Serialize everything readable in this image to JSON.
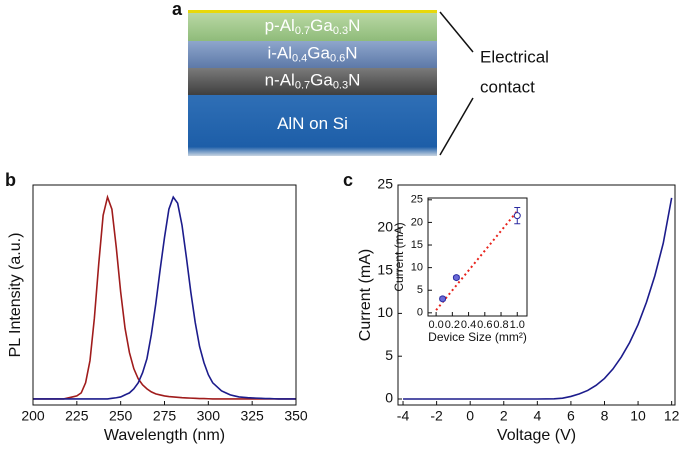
{
  "diagram": {
    "label": "a",
    "layers": [
      {
        "parts": [
          "p-Al",
          "0.7",
          "Ga",
          "0.3",
          "N"
        ]
      },
      {
        "parts": [
          "i-Al",
          "0.4",
          "Ga",
          "0.6",
          "N"
        ]
      },
      {
        "parts": [
          "n-Al",
          "0.7",
          "Ga",
          "0.3",
          "N"
        ]
      },
      {
        "parts": [
          "AlN on Si"
        ]
      }
    ],
    "contact_label": [
      "Electrical",
      "contact"
    ]
  },
  "chart_data": [
    {
      "type": "line",
      "panel_label": "b",
      "xlabel": "Wavelength (nm)",
      "ylabel": "PL Intensity (a.u.)",
      "xlim": [
        200,
        350
      ],
      "ylim": [
        -0.03,
        1.06
      ],
      "xticks": [
        200,
        225,
        250,
        275,
        300,
        325,
        350
      ],
      "x": [
        200,
        202.5,
        205,
        207.5,
        210,
        212.5,
        215,
        217.5,
        220,
        222.5,
        225,
        227.5,
        230,
        232.5,
        235,
        237.5,
        240,
        242.5,
        245,
        247.5,
        250,
        252.5,
        255,
        257.5,
        260,
        262.5,
        265,
        267.5,
        270,
        272.5,
        275,
        277.5,
        280,
        282.5,
        285,
        287.5,
        290,
        292.5,
        295,
        297.5,
        300,
        302.5,
        305,
        307.5,
        310,
        312.5,
        315,
        317.5,
        320,
        322.5,
        325,
        327.5,
        330,
        332.5,
        335,
        337.5,
        340,
        342.5,
        345,
        347.5,
        350
      ],
      "series": [
        {
          "color": "#a01c1c",
          "values": [
            0,
            0,
            0,
            0,
            0,
            0,
            0,
            0,
            0.005,
            0.01,
            0.015,
            0.03,
            0.08,
            0.19,
            0.4,
            0.67,
            0.91,
            1.0,
            0.94,
            0.75,
            0.53,
            0.35,
            0.23,
            0.15,
            0.1,
            0.07,
            0.05,
            0.035,
            0.025,
            0.02,
            0.015,
            0.012,
            0.01,
            0.008,
            0.006,
            0.005,
            0.004,
            0.003,
            0.002,
            0.002,
            0.001,
            0,
            0,
            0,
            0,
            0,
            0,
            0,
            0,
            0,
            0,
            0,
            0,
            0,
            0,
            0,
            0,
            0,
            0,
            0,
            0
          ]
        },
        {
          "color": "#1c1c8c",
          "values": [
            0,
            0,
            0,
            0,
            0,
            0,
            0,
            0,
            0,
            0,
            0,
            0,
            0,
            0,
            0,
            0,
            0,
            0,
            0.003,
            0.006,
            0.01,
            0.02,
            0.03,
            0.05,
            0.08,
            0.13,
            0.2,
            0.32,
            0.47,
            0.64,
            0.8,
            0.94,
            1.0,
            0.97,
            0.86,
            0.7,
            0.53,
            0.38,
            0.26,
            0.18,
            0.12,
            0.08,
            0.06,
            0.04,
            0.03,
            0.02,
            0.015,
            0.01,
            0.008,
            0.006,
            0.005,
            0.004,
            0.003,
            0.002,
            0.002,
            0.001,
            0,
            0,
            0,
            0,
            0
          ]
        }
      ]
    },
    {
      "type": "line",
      "panel_label": "c",
      "xlabel": "Voltage (V)",
      "ylabel": "Current (mA)",
      "xlim": [
        -4.3,
        12.2
      ],
      "ylim": [
        -0.7,
        25
      ],
      "xticks": [
        -4,
        -2,
        0,
        2,
        4,
        6,
        8,
        10,
        12
      ],
      "yticks": [
        0,
        5,
        10,
        15,
        20,
        25
      ],
      "x": [
        -4,
        -2,
        0,
        2,
        4,
        5,
        5.5,
        6,
        6.5,
        7,
        7.5,
        8,
        8.5,
        9,
        9.5,
        10,
        10.5,
        11,
        11.5,
        12
      ],
      "series": [
        {
          "color": "#1c1c8c",
          "values": [
            0,
            0,
            0,
            0,
            0,
            0.02,
            0.1,
            0.3,
            0.6,
            1.0,
            1.6,
            2.4,
            3.5,
            4.9,
            6.6,
            8.7,
            11.3,
            14.4,
            18.2,
            23.5
          ]
        }
      ]
    },
    {
      "type": "scatter",
      "xlabel": "Device Size (mm²)",
      "ylabel": "Current (mA)",
      "xlim": [
        -0.1,
        1.12
      ],
      "ylim": [
        -0.7,
        25.4
      ],
      "xticks": [
        {
          "value": 0,
          "label": "0.0"
        },
        {
          "value": 0.2,
          "label": "0.2"
        },
        {
          "value": 0.4,
          "label": "0.4"
        },
        {
          "value": 0.6,
          "label": "0.6"
        },
        {
          "value": 0.8,
          "label": "0.8"
        },
        {
          "value": 1,
          "label": "1.0"
        }
      ],
      "yticks": [
        0,
        5,
        10,
        15,
        20,
        25
      ],
      "x": [
        0.08,
        0.25,
        1.0
      ],
      "values": [
        3.1,
        7.8,
        21.5
      ],
      "errors": [
        0.4,
        0.4,
        1.8
      ],
      "hollow": [
        false,
        false,
        true
      ],
      "color": "#2a2aa0",
      "fit": {
        "x": [
          0,
          1
        ],
        "values": [
          0.6,
          22.5
        ],
        "color": "#e8231c"
      }
    }
  ]
}
